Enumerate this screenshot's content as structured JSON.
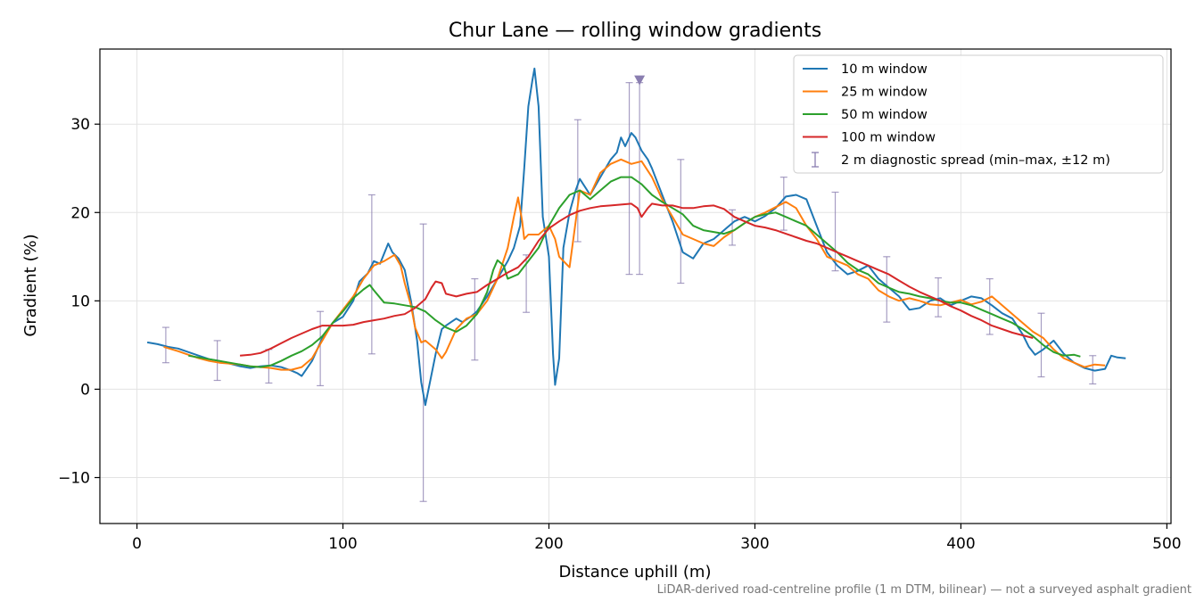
{
  "chart_data": {
    "type": "line",
    "title": "Chur Lane — rolling window gradients",
    "xlabel": "Distance uphill (m)",
    "ylabel": "Gradient (%)",
    "xlim": [
      -18,
      502
    ],
    "ylim": [
      -15.2,
      38.5
    ],
    "xticks": [
      0,
      100,
      200,
      300,
      400,
      500
    ],
    "yticks": [
      -10,
      0,
      10,
      20,
      30
    ],
    "xtick_labels": [
      "0",
      "100",
      "200",
      "300",
      "400",
      "500"
    ],
    "ytick_labels": [
      "−10",
      "0",
      "10",
      "20",
      "30"
    ],
    "grid": true,
    "legend_position": "top-right",
    "footnote": "LiDAR-derived road-centreline profile (1 m DTM, bilinear) — not a surveyed asphalt gradient",
    "series": [
      {
        "name": "10 m window",
        "color": "#1f77b4",
        "x": [
          5,
          10,
          15,
          20,
          25,
          30,
          35,
          40,
          45,
          50,
          55,
          60,
          65,
          70,
          75,
          78,
          80,
          85,
          90,
          95,
          100,
          105,
          108,
          112,
          115,
          118,
          122,
          124,
          127,
          130,
          133,
          136,
          138,
          140,
          142,
          145,
          148,
          150,
          155,
          158,
          162,
          165,
          170,
          175,
          180,
          183,
          186,
          188,
          190,
          192,
          193,
          195,
          197,
          200,
          202,
          203,
          205,
          207,
          210,
          213,
          215,
          220,
          225,
          230,
          233,
          235,
          237,
          240,
          242,
          245,
          248,
          250,
          255,
          260,
          265,
          270,
          275,
          280,
          285,
          290,
          295,
          300,
          305,
          310,
          315,
          320,
          325,
          330,
          335,
          340,
          345,
          350,
          355,
          360,
          365,
          370,
          375,
          380,
          385,
          390,
          395,
          400,
          405,
          410,
          415,
          420,
          425,
          430,
          433,
          436,
          440,
          445,
          450,
          455,
          460,
          465,
          470,
          473,
          476,
          480
        ],
        "y": [
          5.3,
          5.1,
          4.8,
          4.6,
          4.2,
          3.8,
          3.4,
          3.2,
          2.9,
          2.6,
          2.4,
          2.6,
          2.7,
          2.5,
          2.1,
          1.8,
          1.5,
          3.2,
          5.8,
          7.5,
          8.2,
          10.0,
          12.2,
          13.1,
          14.5,
          14.2,
          16.5,
          15.5,
          14.8,
          13.5,
          10.0,
          5.5,
          0.8,
          -1.8,
          0.5,
          4.0,
          6.8,
          7.2,
          8.0,
          7.6,
          8.2,
          8.8,
          10.5,
          12.5,
          14.5,
          16.0,
          18.5,
          25.0,
          32.0,
          35.0,
          36.3,
          32.0,
          19.5,
          15.0,
          4.0,
          0.5,
          3.5,
          16.0,
          20.0,
          22.5,
          23.8,
          22.0,
          24.0,
          26.0,
          26.8,
          28.5,
          27.5,
          29.0,
          28.5,
          27.0,
          26.0,
          25.0,
          22.0,
          19.0,
          15.5,
          14.8,
          16.5,
          17.0,
          18.0,
          19.0,
          19.5,
          19.0,
          19.6,
          20.5,
          21.8,
          22.0,
          21.5,
          18.5,
          15.5,
          14.0,
          13.0,
          13.4,
          14.0,
          12.5,
          11.5,
          10.5,
          9.0,
          9.2,
          10.0,
          10.3,
          9.5,
          10.0,
          10.5,
          10.3,
          9.5,
          8.6,
          8.0,
          6.2,
          4.8,
          3.9,
          4.5,
          5.5,
          4.0,
          3.0,
          2.4,
          2.1,
          2.3,
          3.8,
          3.6,
          3.5
        ]
      },
      {
        "name": "25 m window",
        "color": "#ff7f0e",
        "x": [
          13,
          20,
          25,
          30,
          35,
          40,
          45,
          50,
          55,
          60,
          65,
          70,
          75,
          80,
          85,
          90,
          95,
          100,
          105,
          110,
          115,
          120,
          125,
          128,
          130,
          133,
          135,
          138,
          140,
          145,
          148,
          150,
          155,
          160,
          165,
          170,
          175,
          180,
          183,
          185,
          187,
          188,
          190,
          195,
          200,
          203,
          205,
          210,
          213,
          215,
          220,
          225,
          230,
          235,
          240,
          245,
          250,
          255,
          260,
          265,
          270,
          275,
          280,
          285,
          290,
          295,
          300,
          305,
          310,
          315,
          320,
          325,
          330,
          335,
          340,
          345,
          350,
          355,
          360,
          365,
          370,
          375,
          380,
          385,
          390,
          395,
          400,
          405,
          410,
          415,
          420,
          425,
          430,
          435,
          440,
          445,
          450,
          455,
          460,
          465,
          470
        ],
        "y": [
          4.8,
          4.3,
          3.9,
          3.5,
          3.2,
          3.0,
          2.9,
          2.8,
          2.6,
          2.5,
          2.4,
          2.2,
          2.2,
          2.5,
          3.5,
          5.5,
          7.5,
          9.0,
          10.5,
          12.5,
          14.0,
          14.5,
          15.2,
          14.0,
          12.0,
          9.5,
          7.0,
          5.3,
          5.5,
          4.5,
          3.5,
          4.2,
          6.8,
          8.0,
          8.5,
          10.0,
          12.5,
          16.0,
          19.5,
          21.7,
          19.0,
          17.0,
          17.5,
          17.5,
          18.5,
          17.0,
          15.0,
          13.8,
          19.0,
          22.5,
          22.0,
          24.5,
          25.5,
          26.0,
          25.5,
          25.8,
          24.0,
          21.5,
          19.5,
          17.5,
          17.0,
          16.5,
          16.2,
          17.2,
          18.0,
          18.8,
          19.5,
          20.0,
          20.6,
          21.2,
          20.5,
          18.5,
          17.0,
          15.0,
          14.5,
          14.0,
          13.0,
          12.5,
          11.2,
          10.5,
          10.0,
          10.3,
          10.0,
          9.6,
          9.5,
          9.8,
          10.1,
          9.6,
          9.9,
          10.5,
          9.5,
          8.5,
          7.5,
          6.5,
          5.8,
          4.5,
          3.5,
          3.0,
          2.5,
          2.8,
          2.7
        ]
      },
      {
        "name": "50 m window",
        "color": "#2ca02c",
        "x": [
          25,
          30,
          35,
          40,
          45,
          50,
          55,
          60,
          65,
          70,
          75,
          80,
          85,
          90,
          95,
          100,
          105,
          110,
          113,
          115,
          120,
          125,
          130,
          135,
          140,
          145,
          150,
          155,
          160,
          165,
          170,
          173,
          175,
          178,
          180,
          185,
          190,
          195,
          200,
          205,
          210,
          215,
          220,
          225,
          230,
          235,
          240,
          245,
          250,
          255,
          260,
          265,
          270,
          275,
          280,
          285,
          290,
          295,
          300,
          305,
          310,
          315,
          320,
          325,
          330,
          335,
          340,
          345,
          350,
          355,
          360,
          365,
          370,
          375,
          380,
          385,
          390,
          395,
          400,
          405,
          410,
          415,
          420,
          425,
          430,
          435,
          440,
          445,
          450,
          455,
          458
        ],
        "y": [
          3.8,
          3.6,
          3.4,
          3.2,
          3.0,
          2.8,
          2.6,
          2.5,
          2.7,
          3.2,
          3.8,
          4.3,
          5.0,
          6.0,
          7.5,
          8.8,
          10.3,
          11.3,
          11.8,
          11.2,
          9.8,
          9.7,
          9.5,
          9.3,
          8.8,
          7.8,
          7.0,
          6.5,
          7.2,
          8.5,
          11.0,
          13.5,
          14.6,
          14.0,
          12.5,
          13.0,
          14.5,
          16.0,
          18.5,
          20.5,
          22.0,
          22.5,
          21.5,
          22.5,
          23.5,
          24.0,
          24.0,
          23.2,
          22.0,
          21.2,
          20.5,
          19.8,
          18.5,
          18.0,
          17.8,
          17.6,
          18.0,
          18.8,
          19.5,
          19.8,
          20.0,
          19.5,
          19.0,
          18.5,
          17.5,
          16.5,
          15.5,
          14.3,
          13.5,
          13.0,
          12.0,
          11.5,
          11.0,
          10.8,
          10.5,
          10.3,
          10.0,
          9.8,
          9.8,
          9.5,
          9.0,
          8.5,
          8.0,
          7.5,
          6.8,
          6.0,
          5.0,
          4.2,
          3.8,
          3.9,
          3.7
        ]
      },
      {
        "name": "100 m window",
        "color": "#d62728",
        "x": [
          50,
          55,
          60,
          65,
          70,
          75,
          80,
          85,
          90,
          95,
          100,
          105,
          110,
          115,
          120,
          125,
          130,
          135,
          140,
          143,
          145,
          148,
          150,
          155,
          160,
          165,
          170,
          175,
          180,
          185,
          190,
          195,
          200,
          205,
          210,
          215,
          220,
          225,
          230,
          235,
          240,
          243,
          245,
          248,
          250,
          255,
          260,
          265,
          270,
          275,
          280,
          285,
          290,
          295,
          300,
          305,
          310,
          315,
          320,
          325,
          330,
          335,
          340,
          345,
          350,
          355,
          360,
          365,
          370,
          375,
          380,
          385,
          390,
          395,
          400,
          405,
          410,
          415,
          420,
          425,
          430,
          435
        ],
        "y": [
          3.8,
          3.9,
          4.1,
          4.6,
          5.2,
          5.8,
          6.3,
          6.8,
          7.2,
          7.2,
          7.2,
          7.3,
          7.6,
          7.8,
          8.0,
          8.3,
          8.5,
          9.2,
          10.2,
          11.5,
          12.2,
          12.0,
          10.8,
          10.5,
          10.8,
          11.0,
          11.8,
          12.5,
          13.2,
          13.8,
          15.0,
          16.8,
          18.2,
          19.0,
          19.7,
          20.2,
          20.5,
          20.7,
          20.8,
          20.9,
          21.0,
          20.5,
          19.5,
          20.5,
          21.0,
          20.8,
          20.8,
          20.5,
          20.5,
          20.7,
          20.8,
          20.4,
          19.5,
          19.0,
          18.5,
          18.3,
          18.0,
          17.6,
          17.2,
          16.8,
          16.5,
          16.0,
          15.5,
          15.0,
          14.5,
          14.0,
          13.5,
          13.0,
          12.3,
          11.6,
          11.0,
          10.5,
          10.0,
          9.4,
          8.9,
          8.3,
          7.8,
          7.2,
          6.8,
          6.4,
          6.1,
          5.8
        ]
      }
    ],
    "errorbars": {
      "name": "2 m diagnostic spread (min–max, ±12 m)",
      "color": "#8a7eb0",
      "points": [
        {
          "x": 14,
          "lo": 3.0,
          "hi": 7.0
        },
        {
          "x": 39,
          "lo": 1.0,
          "hi": 5.5
        },
        {
          "x": 64,
          "lo": 0.7,
          "hi": 4.5
        },
        {
          "x": 89,
          "lo": 0.4,
          "hi": 8.8
        },
        {
          "x": 114,
          "lo": 4.0,
          "hi": 22.0
        },
        {
          "x": 139,
          "lo": -12.7,
          "hi": 18.7
        },
        {
          "x": 164,
          "lo": 3.3,
          "hi": 12.5
        },
        {
          "x": 189,
          "lo": 8.7,
          "hi": 15.2
        },
        {
          "x": 214,
          "lo": 16.7,
          "hi": 30.5
        },
        {
          "x": 239,
          "lo": 13.0,
          "hi": 34.7
        },
        {
          "x": 244,
          "lo": 13.0,
          "hi": 34.7
        },
        {
          "x": 264,
          "lo": 12.0,
          "hi": 26.0
        },
        {
          "x": 289,
          "lo": 16.3,
          "hi": 20.3
        },
        {
          "x": 314,
          "lo": 18.0,
          "hi": 24.0
        },
        {
          "x": 339,
          "lo": 13.4,
          "hi": 22.3
        },
        {
          "x": 364,
          "lo": 7.6,
          "hi": 15.0
        },
        {
          "x": 389,
          "lo": 8.2,
          "hi": 12.6
        },
        {
          "x": 414,
          "lo": 6.2,
          "hi": 12.5
        },
        {
          "x": 439,
          "lo": 1.4,
          "hi": 8.6
        },
        {
          "x": 464,
          "lo": 0.6,
          "hi": 3.8
        }
      ]
    },
    "marker": {
      "x": 244,
      "y": 35.0,
      "color": "#8a7eb0",
      "shape": "triangle-down"
    }
  }
}
